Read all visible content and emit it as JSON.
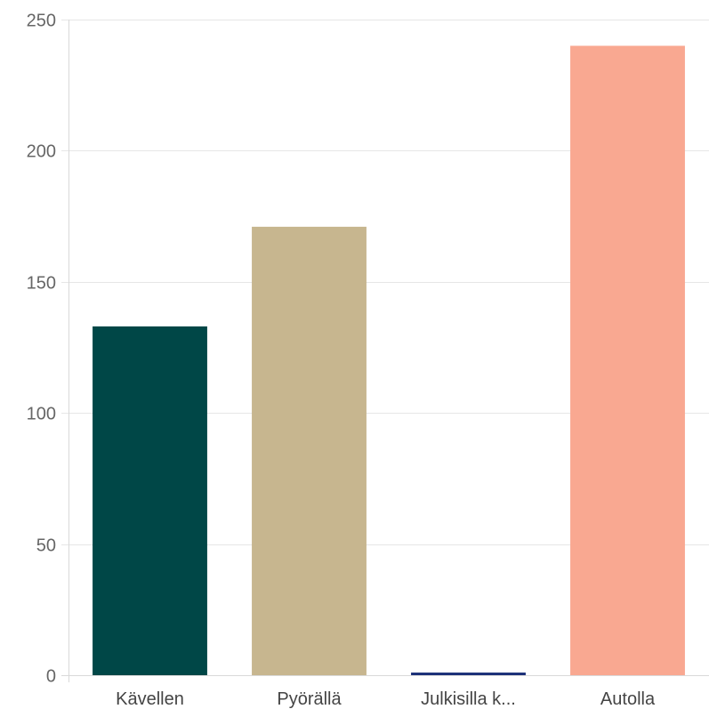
{
  "chart_data": {
    "type": "bar",
    "categories": [
      "Kävellen",
      "Pyörällä",
      "Julkisilla k...",
      "Autolla"
    ],
    "values": [
      133,
      171,
      1,
      240
    ],
    "colors": [
      "#004747",
      "#c7b68f",
      "#1b2f78",
      "#f9a891"
    ],
    "ylim": [
      0,
      250
    ],
    "yticks": [
      0,
      50,
      100,
      150,
      200,
      250
    ],
    "grid": true,
    "legend": "none"
  }
}
